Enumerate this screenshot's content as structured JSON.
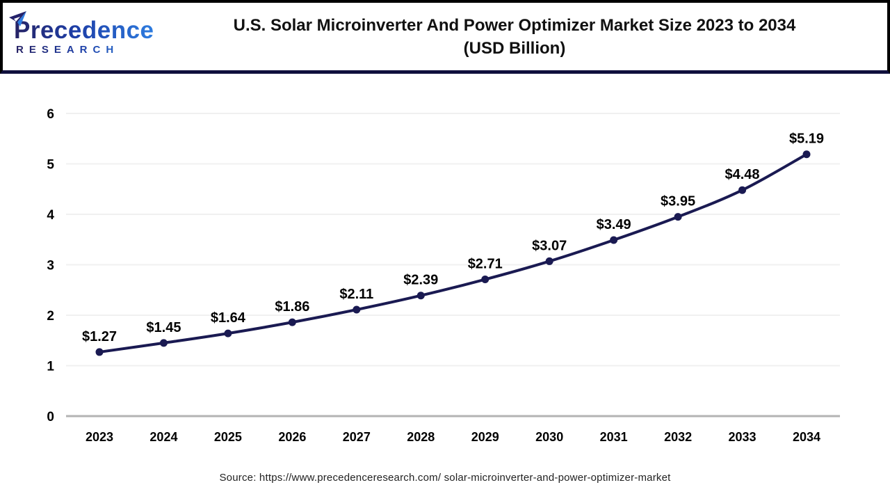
{
  "header": {
    "logo": {
      "wordmark": "Precedence",
      "subtext": "RESEARCH"
    },
    "title_line1": "U.S. Solar Microinverter And Power Optimizer Market Size 2023 to 2034",
    "title_line2": "(USD Billion)"
  },
  "footer": {
    "source_text": "Source: https://www.precedenceresearch.com/ solar-microinverter-and-power-optimizer-market"
  },
  "chart_data": {
    "type": "line",
    "title": "U.S. Solar Microinverter And Power Optimizer Market Size 2023 to 2034 (USD Billion)",
    "categories": [
      "2023",
      "2024",
      "2025",
      "2026",
      "2027",
      "2028",
      "2029",
      "2030",
      "2031",
      "2032",
      "2033",
      "2034"
    ],
    "values": [
      1.27,
      1.45,
      1.64,
      1.86,
      2.11,
      2.39,
      2.71,
      3.07,
      3.49,
      3.95,
      4.48,
      5.19
    ],
    "label_prefix": "$",
    "xlabel": "",
    "ylabel": "",
    "ylim": [
      0,
      6
    ],
    "yticks": [
      0,
      1,
      2,
      3,
      4,
      5,
      6
    ],
    "grid": true,
    "legend": "none",
    "colors": {
      "line": "#1a1a52",
      "marker": "#1a1a52",
      "gridline": "#f0f0f0",
      "axis_line": "#b3b3b3",
      "tick_label": "#000000",
      "data_label": "#000000"
    }
  }
}
